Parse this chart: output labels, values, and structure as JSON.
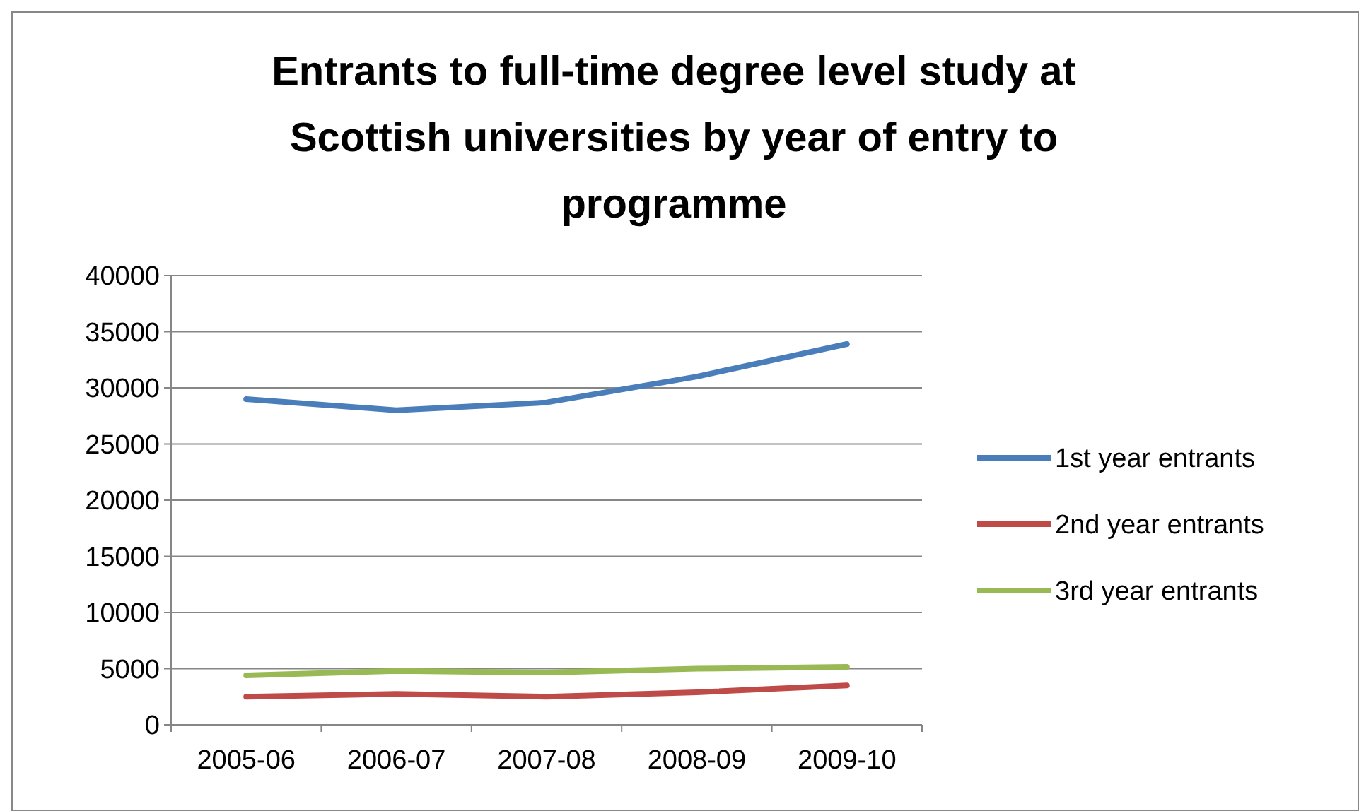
{
  "chart_data": {
    "type": "line",
    "title": "Entrants to full-time degree level study at Scottish universities by year of entry to programme",
    "categories": [
      "2005-06",
      "2006-07",
      "2007-08",
      "2008-09",
      "2009-10"
    ],
    "series": [
      {
        "name": "1st year entrants",
        "color": "#4a7ebb",
        "values": [
          29000,
          28000,
          28700,
          31000,
          33900
        ]
      },
      {
        "name": "2nd year entrants",
        "color": "#be4b48",
        "values": [
          2500,
          2750,
          2500,
          2900,
          3500
        ]
      },
      {
        "name": "3rd year entrants",
        "color": "#98b954",
        "values": [
          4400,
          4800,
          4650,
          5000,
          5150
        ]
      }
    ],
    "ylim": [
      0,
      40000
    ],
    "yticks": [
      0,
      5000,
      10000,
      15000,
      20000,
      25000,
      30000,
      35000,
      40000
    ],
    "grid": "y",
    "legend": "right",
    "marker": "none",
    "line_style": "solid"
  }
}
